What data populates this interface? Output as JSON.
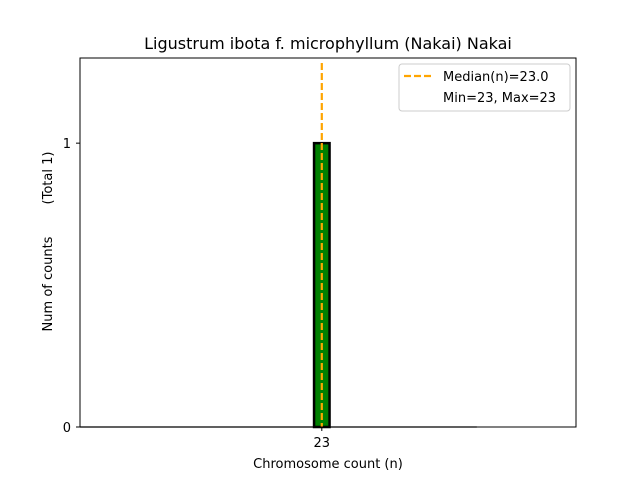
{
  "chart_data": {
    "type": "bar",
    "title": "Ligustrum ibota f. microphyllum (Nakai) Nakai",
    "xlabel": "Chromosome count (n)",
    "ylabel": "Num of counts",
    "ylabel_note": "(Total 1)",
    "categories": [
      "23"
    ],
    "values": [
      1
    ],
    "x_ticks": [
      "23"
    ],
    "y_ticks": [
      0,
      1
    ],
    "ylim": [
      0,
      1.3
    ],
    "xlim": [
      15.2,
      31.2
    ],
    "grid": false,
    "legend_position": "top-right",
    "legend": [
      {
        "label": "Median(n)=23.0",
        "style": "dashed-line"
      },
      {
        "label": "Min=23, Max=23",
        "style": "none"
      }
    ],
    "median": 23.0,
    "colors": {
      "bar_fill": "#008000",
      "bar_edge": "#000000",
      "median_line": "#FFA500",
      "axes": "#000000"
    }
  }
}
